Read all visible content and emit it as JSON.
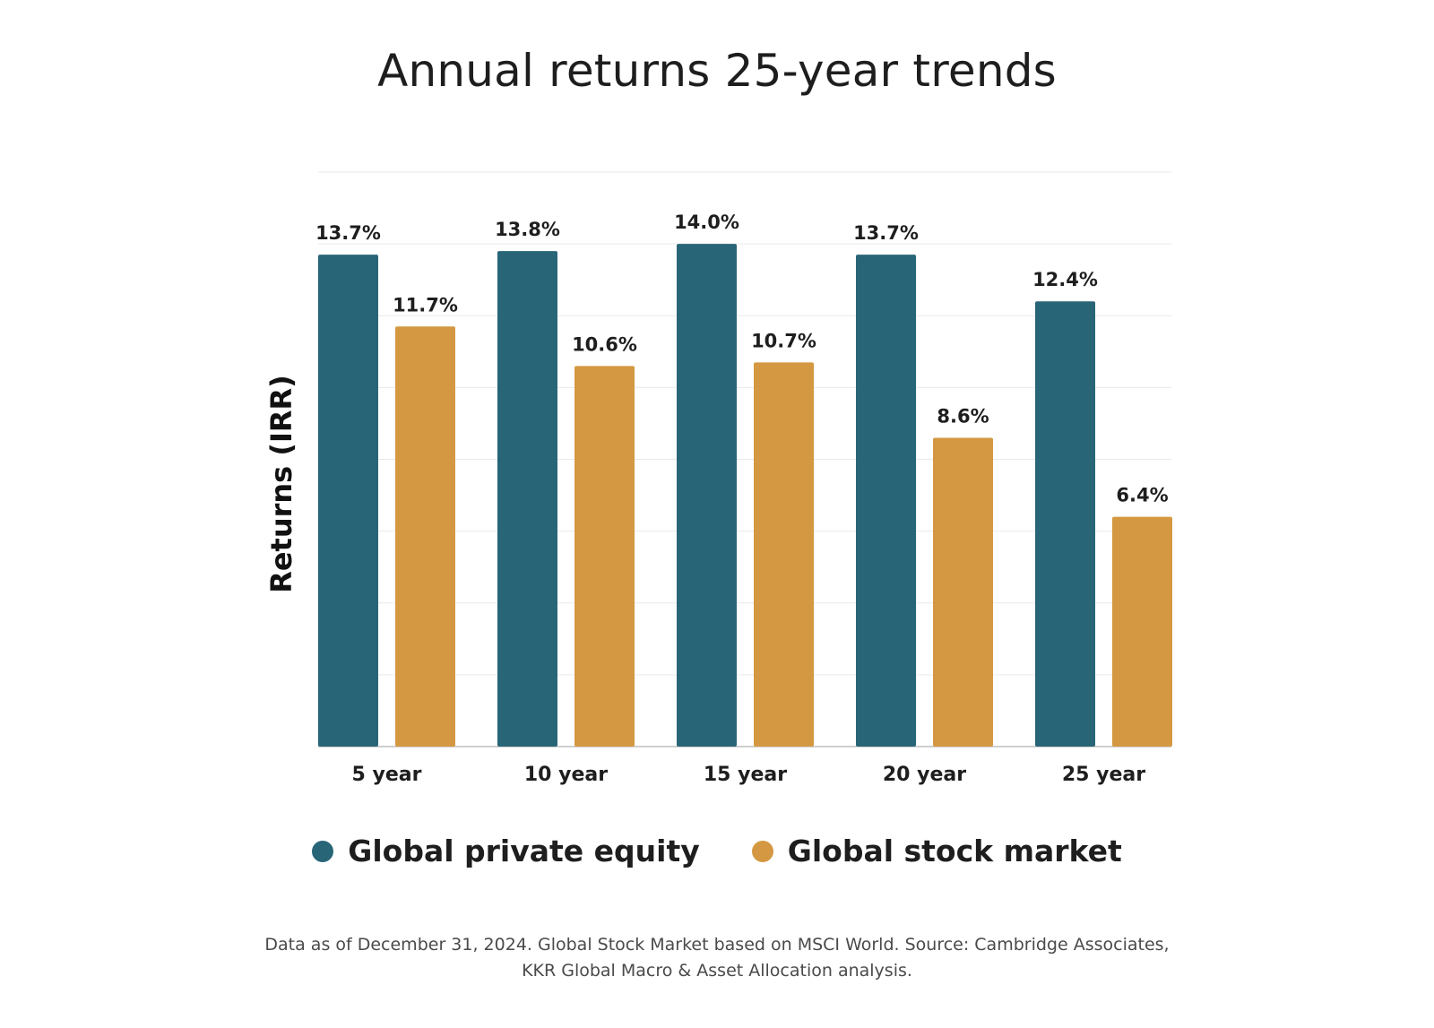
{
  "colors": {
    "private_equity": "#286577",
    "stock_market": "#d49842",
    "grid": "#e9e9e9",
    "axis": "#cfcfcf"
  },
  "chart_data": {
    "type": "bar",
    "title": "Annual returns 25-year trends",
    "xlabel": "",
    "ylabel": "Returns (IRR)",
    "ylim": [
      0,
      16
    ],
    "grid": true,
    "legend_position": "bottom-center",
    "categories": [
      "5 year",
      "10 year",
      "15 year",
      "20 year",
      "25 year"
    ],
    "series": [
      {
        "name": "Global private equity",
        "values": [
          13.7,
          13.8,
          14.0,
          13.7,
          12.4
        ],
        "labels": [
          "13.7%",
          "13.8%",
          "14.0%",
          "13.7%",
          "12.4%"
        ]
      },
      {
        "name": "Global stock market",
        "values": [
          11.7,
          10.6,
          10.7,
          8.6,
          6.4
        ],
        "labels": [
          "11.7%",
          "10.6%",
          "10.7%",
          "8.6%",
          "6.4%"
        ]
      }
    ]
  },
  "footnote": {
    "line1": "Data as of December 31, 2024. Global Stock Market based on MSCI World.  Source: Cambridge Associates,",
    "line2": "KKR Global Macro & Asset Allocation analysis."
  }
}
